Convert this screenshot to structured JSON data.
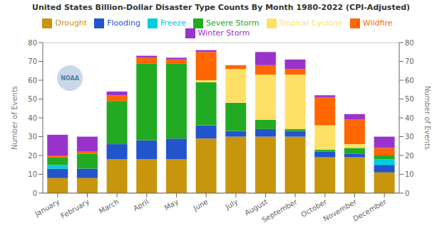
{
  "chart_data": {
    "type": "bar",
    "stacked": true,
    "title": "United States Billion-Dollar Disaster Type Counts By Month 1980-2022 (CPI-Adjusted)",
    "categories": [
      "January",
      "February",
      "March",
      "April",
      "May",
      "June",
      "July",
      "August",
      "September",
      "October",
      "November",
      "December"
    ],
    "series": [
      {
        "name": "Drought",
        "color": "#C8960C",
        "values": [
          8,
          8,
          18,
          18,
          18,
          29,
          30,
          30,
          30,
          19,
          19,
          11
        ]
      },
      {
        "name": "Flooding",
        "color": "#2255CC",
        "values": [
          5,
          5,
          8,
          10,
          11,
          7,
          3,
          4,
          3,
          3,
          2,
          4
        ]
      },
      {
        "name": "Freeze",
        "color": "#00CCDD",
        "values": [
          2,
          0,
          0,
          0,
          0,
          0,
          0,
          0,
          0,
          0,
          0,
          3
        ]
      },
      {
        "name": "Severe Storm",
        "color": "#22AA22",
        "values": [
          4,
          8,
          23,
          41,
          40,
          23,
          15,
          5,
          1,
          1,
          3,
          2
        ]
      },
      {
        "name": "Tropical Cyclone",
        "color": "#FFE066",
        "values": [
          0,
          0,
          0,
          0,
          0,
          1,
          18,
          24,
          29,
          13,
          2,
          0
        ]
      },
      {
        "name": "Wildfire",
        "color": "#FF6600",
        "values": [
          1,
          1,
          3,
          3,
          2,
          15,
          2,
          5,
          3,
          15,
          13,
          4
        ]
      },
      {
        "name": "Winter Storm",
        "color": "#9933CC",
        "values": [
          11,
          8,
          2,
          1,
          1,
          1,
          0,
          7,
          5,
          1,
          3,
          6
        ]
      }
    ],
    "ylabel": "Number of Events",
    "ylim": [
      0,
      80
    ],
    "yticks": [
      0,
      10,
      20,
      30,
      40,
      50,
      60,
      70,
      80
    ],
    "y2label": "Number of Events",
    "y2lim": [
      0,
      80
    ],
    "y2ticks": [
      0,
      10,
      20,
      30,
      40,
      50,
      60,
      70,
      80
    ],
    "grid": true,
    "legend": "top",
    "annotations": [
      "NOAA"
    ]
  }
}
